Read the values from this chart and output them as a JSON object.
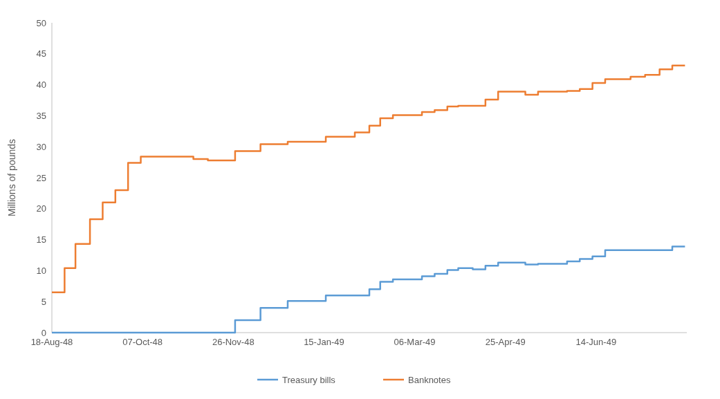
{
  "chart_data": {
    "type": "step",
    "ylabel": "Millions of pounds",
    "x": [
      "1948-08-18",
      "1948-08-25",
      "1948-08-31",
      "1948-09-08",
      "1948-09-15",
      "1948-09-22",
      "1948-09-29",
      "1948-10-06",
      "1948-11-04",
      "1948-11-12",
      "1948-11-27",
      "1948-12-11",
      "1948-12-26",
      "1949-01-16",
      "1949-02-01",
      "1949-02-09",
      "1949-02-15",
      "1949-02-22",
      "1949-03-10",
      "1949-03-17",
      "1949-03-24",
      "1949-03-30",
      "1949-04-07",
      "1949-04-14",
      "1949-04-21",
      "1949-05-06",
      "1949-05-13",
      "1949-05-29",
      "1949-06-05",
      "1949-06-12",
      "1949-06-19",
      "1949-07-03",
      "1949-07-11",
      "1949-07-19",
      "1949-07-26",
      "1949-08-02"
    ],
    "series": [
      {
        "name": "Treasury bills",
        "color": "#5b9bd5",
        "values": [
          0,
          0,
          0,
          0,
          0,
          0,
          0,
          0,
          0,
          0,
          2.0,
          4.0,
          5.1,
          6.0,
          6.0,
          7.0,
          8.2,
          8.6,
          9.1,
          9.5,
          10.1,
          10.4,
          10.2,
          10.8,
          11.3,
          11.0,
          11.1,
          11.5,
          11.9,
          12.3,
          13.3,
          13.3,
          13.3,
          13.3,
          13.9,
          13.9
        ]
      },
      {
        "name": "Banknotes",
        "color": "#ed7d31",
        "values": [
          6.5,
          10.4,
          14.3,
          18.3,
          21.0,
          23.0,
          27.4,
          28.4,
          28.0,
          27.8,
          29.3,
          30.4,
          30.8,
          31.6,
          32.3,
          33.4,
          34.6,
          35.1,
          35.6,
          35.9,
          36.5,
          36.6,
          36.6,
          37.6,
          38.9,
          38.4,
          38.9,
          39.0,
          39.3,
          40.3,
          40.9,
          41.3,
          41.6,
          42.5,
          43.1,
          43.1
        ]
      }
    ],
    "xlim": [
      "1948-08-18",
      "1949-08-03"
    ],
    "xticks": [
      {
        "value": "1948-08-18",
        "label": "18-Aug-48"
      },
      {
        "value": "1948-10-07",
        "label": "07-Oct-48"
      },
      {
        "value": "1948-11-26",
        "label": "26-Nov-48"
      },
      {
        "value": "1949-01-15",
        "label": "15-Jan-49"
      },
      {
        "value": "1949-03-06",
        "label": "06-Mar-49"
      },
      {
        "value": "1949-04-25",
        "label": "25-Apr-49"
      },
      {
        "value": "1949-06-14",
        "label": "14-Jun-49"
      }
    ],
    "ylim": [
      0,
      50
    ],
    "yticks": [
      0,
      5,
      10,
      15,
      20,
      25,
      30,
      35,
      40,
      45,
      50
    ],
    "grid": false,
    "legend": "bottom",
    "line_style": "solid",
    "marker": "none"
  }
}
